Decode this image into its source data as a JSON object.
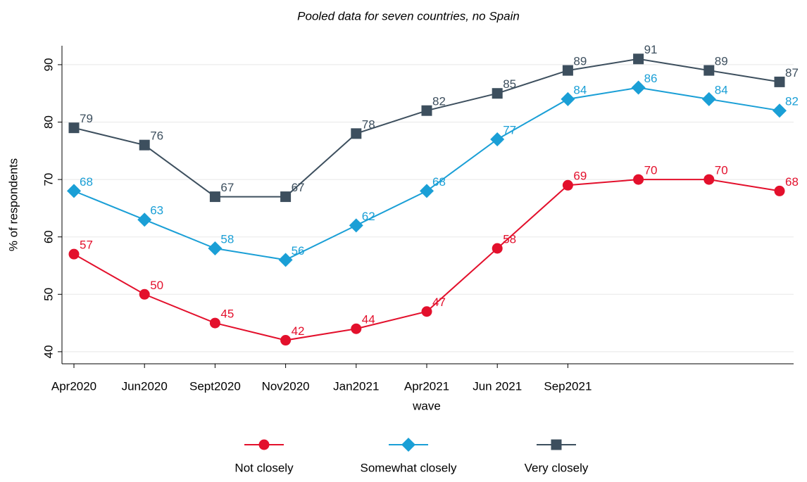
{
  "chart_data": {
    "type": "line",
    "title": "Pooled data for seven countries, no Spain",
    "x_label": "wave",
    "y_label": "% of respondents",
    "categories": [
      "Apr2020",
      "Jun2020",
      "Sept2020",
      "Nov2020",
      "Jan2021",
      "Apr2021",
      "Jun 2021",
      "Sep2021",
      null,
      null,
      null
    ],
    "series": [
      {
        "name": "Not closely",
        "color": "#e3102c",
        "marker": "circle",
        "values": [
          57,
          50,
          45,
          42,
          44,
          47,
          58,
          69,
          70,
          70,
          68
        ]
      },
      {
        "name": "Somewhat closely",
        "color": "#1a9fd6",
        "marker": "diamond",
        "values": [
          68,
          63,
          58,
          56,
          62,
          68,
          77,
          84,
          86,
          84,
          82
        ]
      },
      {
        "name": "Very closely",
        "color": "#3d4f5e",
        "marker": "square",
        "values": [
          79,
          76,
          67,
          67,
          78,
          82,
          85,
          89,
          91,
          89,
          87
        ]
      }
    ],
    "ylim": [
      37.9,
      93.3
    ],
    "yticks": [
      40,
      50,
      60,
      70,
      80,
      90
    ],
    "grid": true,
    "legend": "bottom"
  }
}
